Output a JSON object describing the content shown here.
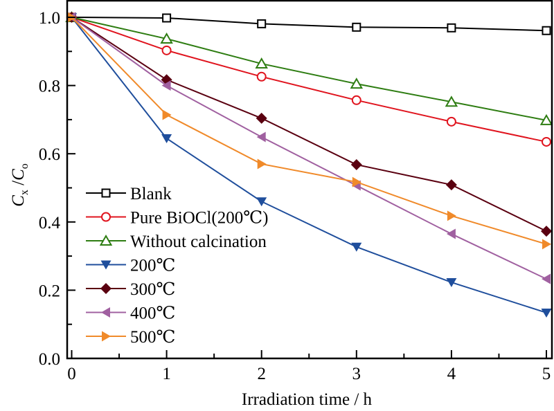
{
  "chart_data": {
    "type": "line",
    "title": "",
    "xlabel": "Irradiation time / h",
    "ylabel": {
      "main": "C",
      "sub1": "x",
      "sep": " /",
      "main2": "C",
      "sub2": "o"
    },
    "xlim": [
      -0.05,
      5.05
    ],
    "ylim": [
      0.0,
      1.05
    ],
    "xticks": [
      0,
      1,
      2,
      3,
      4,
      5
    ],
    "xtick_labels": [
      "0",
      "1",
      "2",
      "3",
      "4",
      "5"
    ],
    "yticks": [
      0.0,
      0.2,
      0.4,
      0.6,
      0.8,
      1.0
    ],
    "ytick_labels": [
      "0.0",
      "0.2",
      "0.4",
      "0.6",
      "0.8",
      "1.0"
    ],
    "grid": false,
    "legend_position": "lower-left",
    "x": [
      0,
      1,
      2,
      3,
      4,
      5
    ],
    "series": [
      {
        "name": "Blank",
        "color": "#000000",
        "marker": "square-open",
        "values": [
          1.0,
          0.998,
          0.981,
          0.971,
          0.969,
          0.961
        ]
      },
      {
        "name": "Pure BiOCl(200℃)",
        "color": "#e0141e",
        "marker": "circle-open",
        "values": [
          1.0,
          0.903,
          0.826,
          0.757,
          0.694,
          0.635
        ]
      },
      {
        "name": "Without calcination",
        "color": "#2e7d12",
        "marker": "triangle-up-open",
        "values": [
          1.0,
          0.937,
          0.864,
          0.805,
          0.752,
          0.698
        ]
      },
      {
        "name": "200℃",
        "color": "#1f4e9c",
        "marker": "triangle-down",
        "values": [
          1.0,
          0.645,
          0.46,
          0.327,
          0.223,
          0.134
        ]
      },
      {
        "name": "300℃",
        "color": "#5a0010",
        "marker": "diamond",
        "values": [
          1.0,
          0.817,
          0.704,
          0.568,
          0.509,
          0.373
        ]
      },
      {
        "name": "400℃",
        "color": "#a060a0",
        "marker": "triangle-left",
        "values": [
          1.0,
          0.8,
          0.649,
          0.507,
          0.365,
          0.233
        ]
      },
      {
        "name": "500℃",
        "color": "#f08a2a",
        "marker": "triangle-right",
        "values": [
          1.0,
          0.714,
          0.57,
          0.517,
          0.418,
          0.335
        ]
      }
    ]
  }
}
